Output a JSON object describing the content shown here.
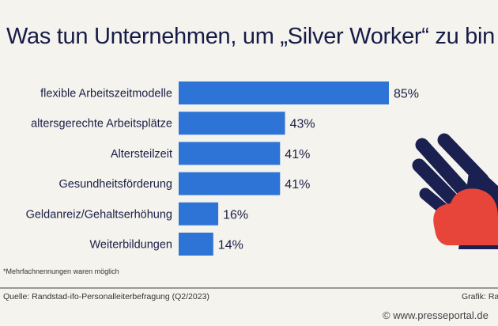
{
  "chart_data": {
    "type": "bar",
    "orientation": "horizontal",
    "title": "Was tun Unternehmen, um „Silver Worker“ zu bin",
    "categories": [
      "flexible Arbeitszeitmodelle",
      "altersgerechte Arbeitsplätze",
      "Altersteilzeit",
      "Gesundheitsförderung",
      "Geldanreiz/Gehaltserhöhung",
      "Weiterbildungen"
    ],
    "values": [
      85,
      43,
      41,
      41,
      16,
      14
    ],
    "value_labels": [
      "85%",
      "43%",
      "41%",
      "41%",
      "16%",
      "14%"
    ],
    "xlim": [
      0,
      100
    ],
    "grid": false,
    "bar_color": "#2e74d6"
  },
  "note": "*Mehrfachnennungen waren möglich",
  "source": "Quelle: Randstad-ifo-Personalleiterbefragung (Q2/2023)",
  "credit": "Grafik: Ra",
  "watermark": "© www.presseportal.de",
  "colors": {
    "navy": "#1a2050",
    "heart": "#e8453a",
    "background": "#f4f3ee"
  }
}
